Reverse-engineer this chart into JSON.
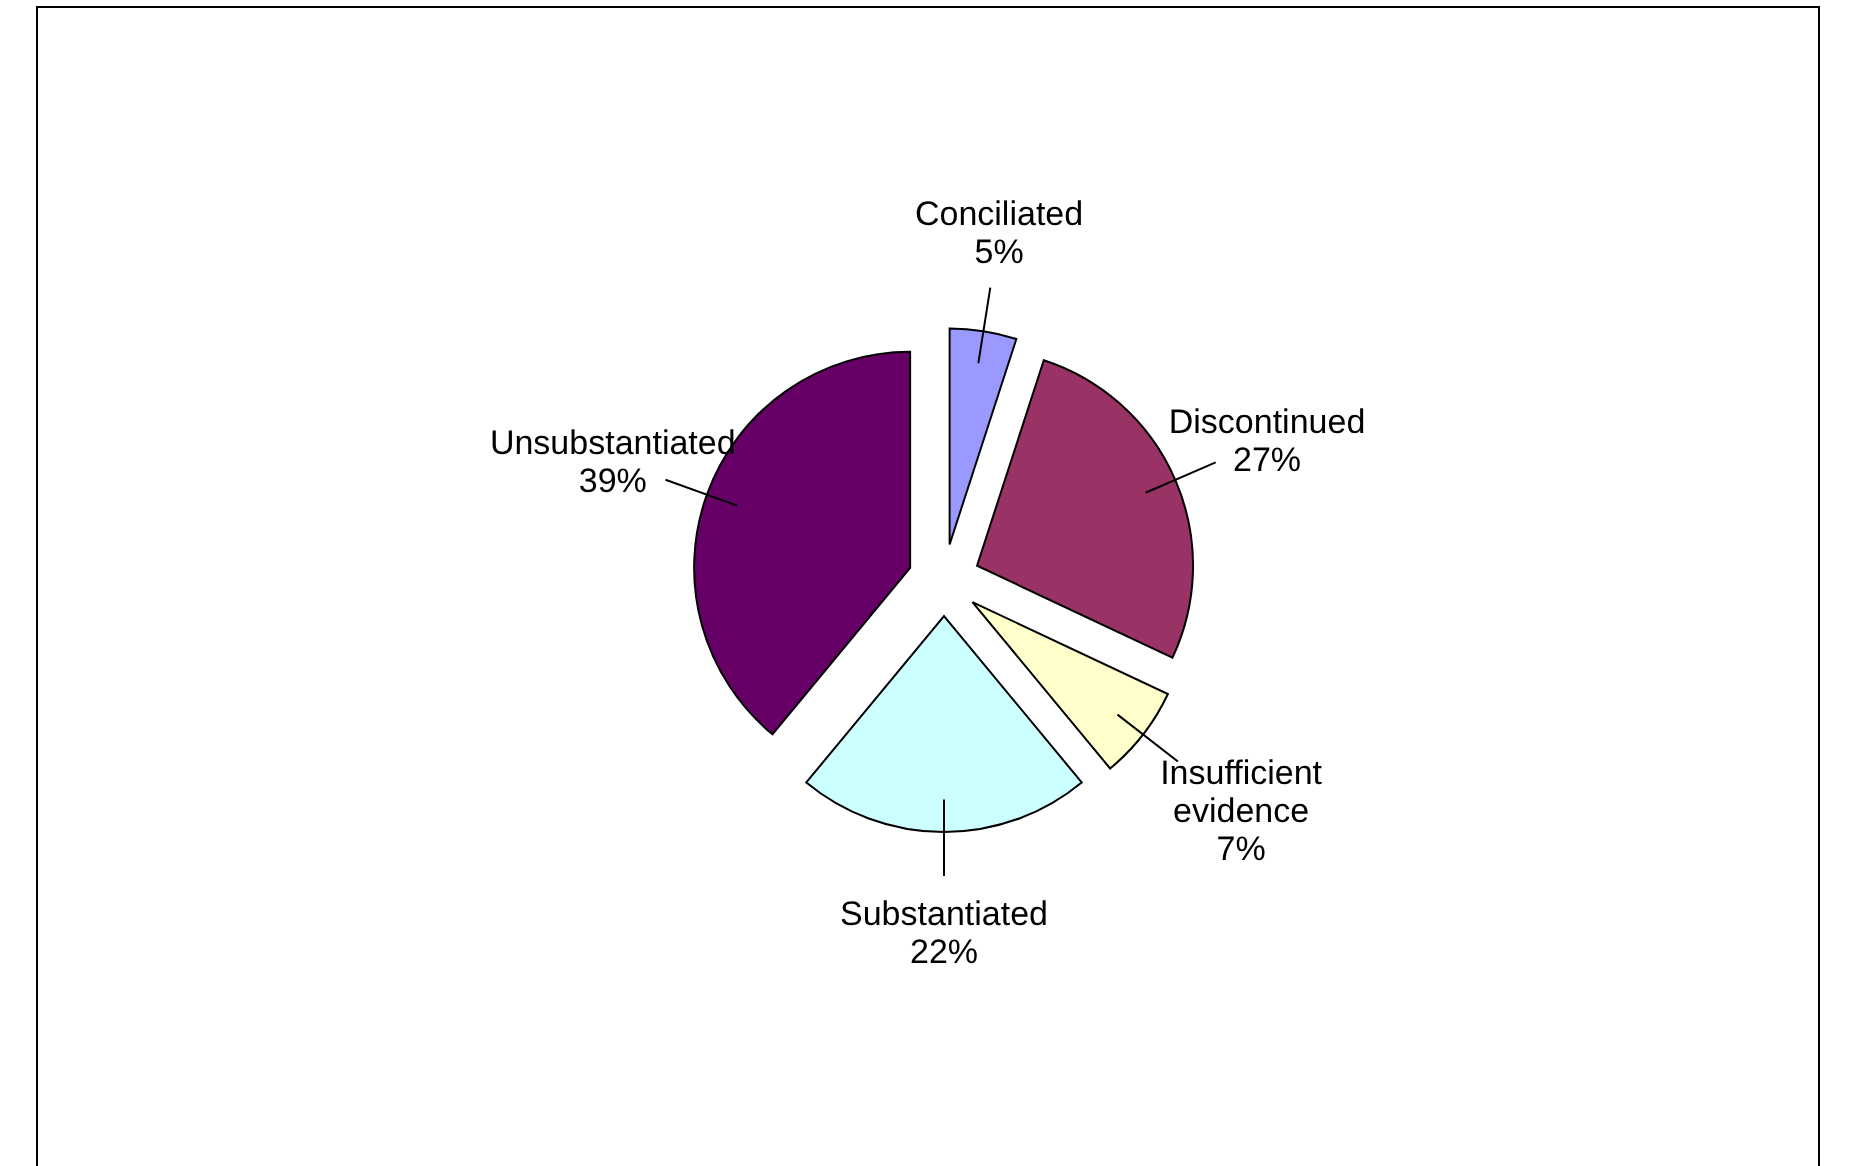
{
  "chart_data": {
    "type": "pie",
    "categories": [
      "Conciliated",
      "Discontinued",
      "Insufficient evidence",
      "Substantiated",
      "Unsubstantiated"
    ],
    "values": [
      5,
      27,
      7,
      22,
      39
    ],
    "colors": [
      "#9999ff",
      "#993366",
      "#ffffcc",
      "#ccffff",
      "#660066"
    ],
    "value_labels": [
      "5%",
      "27%",
      "7%",
      "22%",
      "39%"
    ]
  }
}
